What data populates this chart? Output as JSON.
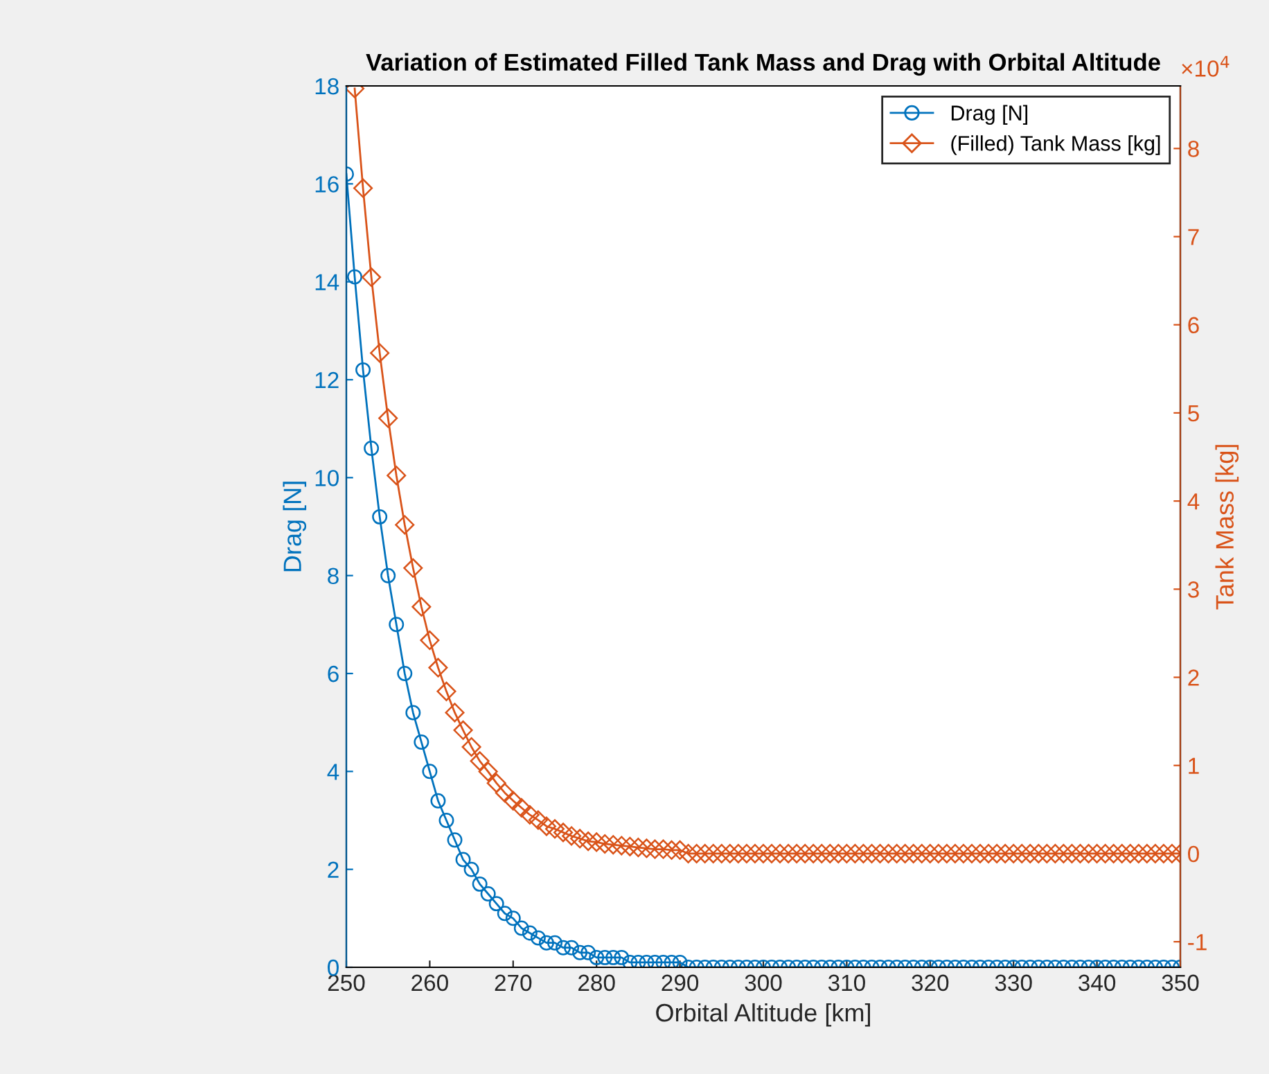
{
  "chart_data": {
    "type": "line",
    "title": "Variation of Estimated Filled Tank Mass and Drag with Orbital Altitude",
    "xlabel": "Orbital Altitude [km]",
    "ylabel": "Drag [N]",
    "y2label": "Tank Mass [kg]",
    "annotations": [
      "×10$^{4}$"
    ],
    "xlim": [
      250,
      350
    ],
    "xticks": [
      250,
      260,
      270,
      280,
      290,
      300,
      310,
      320,
      330,
      340,
      350
    ],
    "ylim": [
      0,
      18
    ],
    "yticks": [
      0,
      2,
      4,
      6,
      8,
      10,
      12,
      14,
      16,
      18
    ],
    "y2lim": [
      -1.29,
      8.71
    ],
    "y2ticks": [
      -1,
      0,
      1,
      2,
      3,
      4,
      5,
      6,
      7,
      8
    ],
    "grid": false,
    "legend": "top right",
    "line_style": "solid",
    "series": [
      {
        "name": "Drag [N]",
        "color": "#0072bd",
        "marker": "circle",
        "axis": "y",
        "x": [
          250,
          251,
          252,
          253,
          254,
          255,
          256,
          257,
          258,
          259,
          260,
          261,
          262,
          263,
          264,
          265,
          266,
          267,
          268,
          269,
          270,
          271,
          272,
          273,
          274,
          275,
          276,
          277,
          278,
          279,
          280,
          281,
          282,
          283,
          284,
          285,
          286,
          287,
          288,
          289,
          290,
          291,
          292,
          293,
          294,
          295,
          296,
          297,
          298,
          299,
          300,
          301,
          302,
          303,
          304,
          305,
          306,
          307,
          308,
          309,
          310,
          311,
          312,
          313,
          314,
          315,
          316,
          317,
          318,
          319,
          320,
          321,
          322,
          323,
          324,
          325,
          326,
          327,
          328,
          329,
          330,
          331,
          332,
          333,
          334,
          335,
          336,
          337,
          338,
          339,
          340,
          341,
          342,
          343,
          344,
          345,
          346,
          347,
          348,
          349,
          350
        ],
        "values": [
          16.2,
          14.1,
          12.2,
          10.6,
          9.2,
          8.0,
          7.0,
          6.0,
          5.2,
          4.6,
          4.0,
          3.4,
          3.0,
          2.6,
          2.2,
          2.0,
          1.7,
          1.5,
          1.3,
          1.1,
          1.0,
          0.8,
          0.7,
          0.6,
          0.5,
          0.5,
          0.4,
          0.4,
          0.3,
          0.3,
          0.2,
          0.2,
          0.2,
          0.2,
          0.1,
          0.1,
          0.1,
          0.1,
          0.1,
          0.1,
          0.1,
          0,
          0,
          0,
          0,
          0,
          0,
          0,
          0,
          0,
          0,
          0,
          0,
          0,
          0,
          0,
          0,
          0,
          0,
          0,
          0,
          0,
          0,
          0,
          0,
          0,
          0,
          0,
          0,
          0,
          0,
          0,
          0,
          0,
          0,
          0,
          0,
          0,
          0,
          0,
          0,
          0,
          0,
          0,
          0,
          0,
          0,
          0,
          0,
          0,
          0,
          0,
          0,
          0,
          0,
          0,
          0,
          0,
          0,
          0,
          0
        ]
      },
      {
        "name": "(Filled) Tank Mass [kg]",
        "color": "#d95319",
        "marker": "diamond",
        "axis": "y2",
        "x": [
          251,
          252,
          253,
          254,
          255,
          256,
          257,
          258,
          259,
          260,
          261,
          262,
          263,
          264,
          265,
          266,
          267,
          268,
          269,
          270,
          271,
          272,
          273,
          274,
          275,
          276,
          277,
          278,
          279,
          280,
          281,
          282,
          283,
          284,
          285,
          286,
          287,
          288,
          289,
          290,
          291,
          292,
          293,
          294,
          295,
          296,
          297,
          298,
          299,
          300,
          301,
          302,
          303,
          304,
          305,
          306,
          307,
          308,
          309,
          310,
          311,
          312,
          313,
          314,
          315,
          316,
          317,
          318,
          319,
          320,
          321,
          322,
          323,
          324,
          325,
          326,
          327,
          328,
          329,
          330,
          331,
          332,
          333,
          334,
          335,
          336,
          337,
          338,
          339,
          340,
          341,
          342,
          343,
          344,
          345,
          346,
          347,
          348,
          349,
          350
        ],
        "values": [
          8.68,
          7.55,
          6.54,
          5.68,
          4.94,
          4.29,
          3.73,
          3.24,
          2.8,
          2.42,
          2.11,
          1.84,
          1.6,
          1.4,
          1.21,
          1.05,
          0.93,
          0.8,
          0.69,
          0.6,
          0.52,
          0.44,
          0.38,
          0.31,
          0.28,
          0.24,
          0.2,
          0.17,
          0.14,
          0.13,
          0.11,
          0.1,
          0.09,
          0.08,
          0.07,
          0.06,
          0.05,
          0.05,
          0.04,
          0.04,
          0,
          0,
          0,
          0,
          0,
          0,
          0,
          0,
          0,
          0,
          0,
          0,
          0,
          0,
          0,
          0,
          0,
          0,
          0,
          0,
          0,
          0,
          0,
          0,
          0,
          0,
          0,
          0,
          0,
          0,
          0,
          0,
          0,
          0,
          0,
          0,
          0,
          0,
          0,
          0,
          0,
          0,
          0,
          0,
          0,
          0,
          0,
          0,
          0,
          0,
          0,
          0,
          0,
          0,
          0,
          0,
          0,
          0,
          0,
          0
        ]
      }
    ]
  }
}
